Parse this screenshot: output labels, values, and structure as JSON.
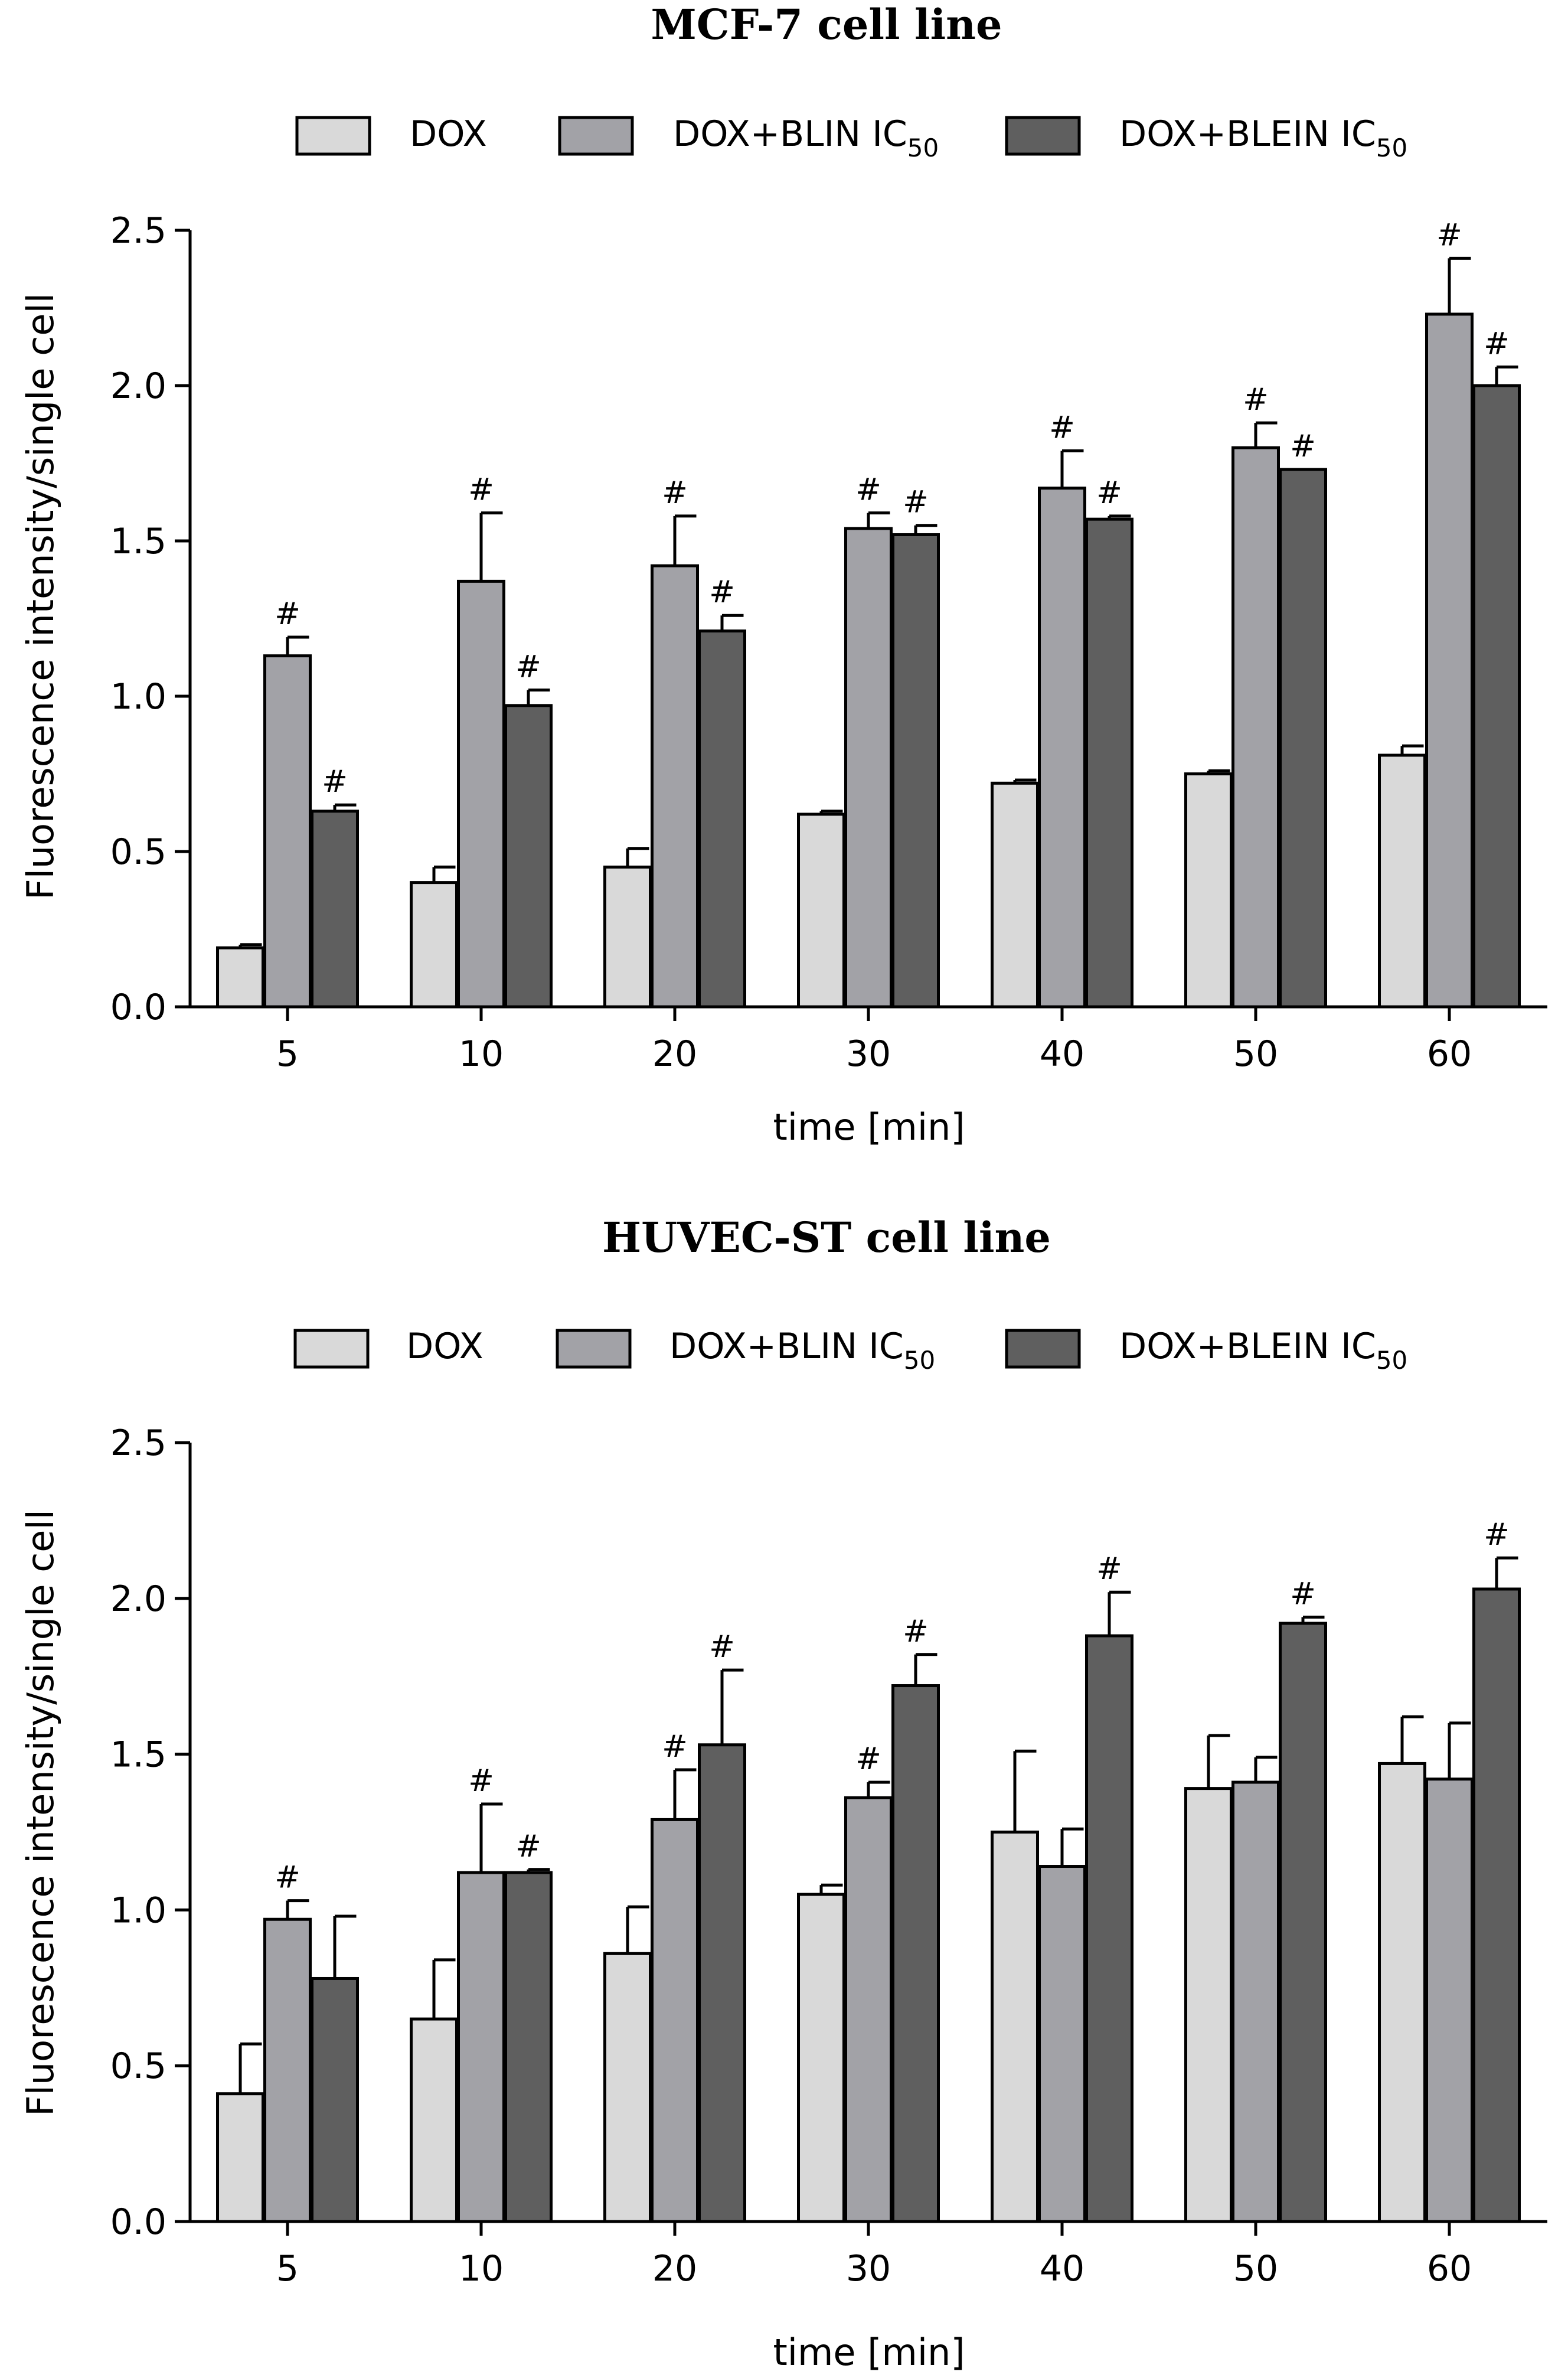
{
  "colors": {
    "DOX": "#d9d9d9",
    "DOX+BLIN IC50": "#a2a2a7",
    "DOX+BLEIN IC50": "#5f5f5f",
    "axis": "#000000"
  },
  "chart_data": [
    {
      "type": "bar",
      "title": "MCF-7 cell line",
      "xlabel": "time [min]",
      "ylabel": "Fluorescence intensity/single cell",
      "ylim": [
        0,
        2.5
      ],
      "yticks": [
        "0.0",
        "0.5",
        "1.0",
        "1.5",
        "2.0",
        "2.5"
      ],
      "grid": false,
      "legend_position": "top",
      "categories": [
        "5",
        "10",
        "20",
        "30",
        "40",
        "50",
        "60"
      ],
      "series": [
        {
          "name": "DOX",
          "legend_main": "DOX",
          "legend_sub": "",
          "values": [
            0.19,
            0.4,
            0.45,
            0.62,
            0.72,
            0.75,
            0.81
          ],
          "errors": [
            0.01,
            0.05,
            0.06,
            0.01,
            0.01,
            0.01,
            0.03
          ],
          "significant": [
            false,
            false,
            false,
            false,
            false,
            false,
            false
          ]
        },
        {
          "name": "DOX+BLIN IC50",
          "legend_main": "DOX+BLIN IC",
          "legend_sub": "50",
          "values": [
            1.13,
            1.37,
            1.42,
            1.54,
            1.67,
            1.8,
            2.23
          ],
          "errors": [
            0.06,
            0.22,
            0.16,
            0.05,
            0.12,
            0.08,
            0.18
          ],
          "significant": [
            true,
            true,
            true,
            true,
            true,
            true,
            true
          ]
        },
        {
          "name": "DOX+BLEIN IC50",
          "legend_main": "DOX+BLEIN IC",
          "legend_sub": "50",
          "values": [
            0.63,
            0.97,
            1.21,
            1.52,
            1.57,
            1.73,
            2.0
          ],
          "errors": [
            0.02,
            0.05,
            0.05,
            0.03,
            0.01,
            0.0,
            0.06
          ],
          "significant": [
            true,
            true,
            true,
            true,
            true,
            true,
            true
          ]
        }
      ],
      "annotation_symbol": "#"
    },
    {
      "type": "bar",
      "title": "HUVEC-ST cell line",
      "xlabel": "time [min]",
      "ylabel": "Fluorescence intensity/single cell",
      "ylim": [
        0,
        2.5
      ],
      "yticks": [
        "0.0",
        "0.5",
        "1.0",
        "1.5",
        "2.0",
        "2.5"
      ],
      "grid": false,
      "legend_position": "top",
      "categories": [
        "5",
        "10",
        "20",
        "30",
        "40",
        "50",
        "60"
      ],
      "series": [
        {
          "name": "DOX",
          "legend_main": "DOX",
          "legend_sub": "",
          "values": [
            0.41,
            0.65,
            0.86,
            1.05,
            1.25,
            1.39,
            1.47
          ],
          "errors": [
            0.16,
            0.19,
            0.15,
            0.03,
            0.26,
            0.17,
            0.15
          ],
          "significant": [
            false,
            false,
            false,
            false,
            false,
            false,
            false
          ]
        },
        {
          "name": "DOX+BLIN IC50",
          "legend_main": "DOX+BLIN IC",
          "legend_sub": "50",
          "values": [
            0.97,
            1.12,
            1.29,
            1.36,
            1.14,
            1.41,
            1.42
          ],
          "errors": [
            0.06,
            0.22,
            0.16,
            0.05,
            0.12,
            0.08,
            0.18
          ],
          "significant": [
            true,
            true,
            true,
            true,
            false,
            false,
            false
          ]
        },
        {
          "name": "DOX+BLEIN IC50",
          "legend_main": "DOX+BLEIN IC",
          "legend_sub": "50",
          "values": [
            0.78,
            1.12,
            1.53,
            1.72,
            1.88,
            1.92,
            2.03
          ],
          "errors": [
            0.2,
            0.01,
            0.24,
            0.1,
            0.14,
            0.02,
            0.1
          ],
          "significant": [
            false,
            true,
            true,
            true,
            true,
            true,
            true
          ]
        }
      ],
      "annotation_symbol": "#"
    }
  ]
}
